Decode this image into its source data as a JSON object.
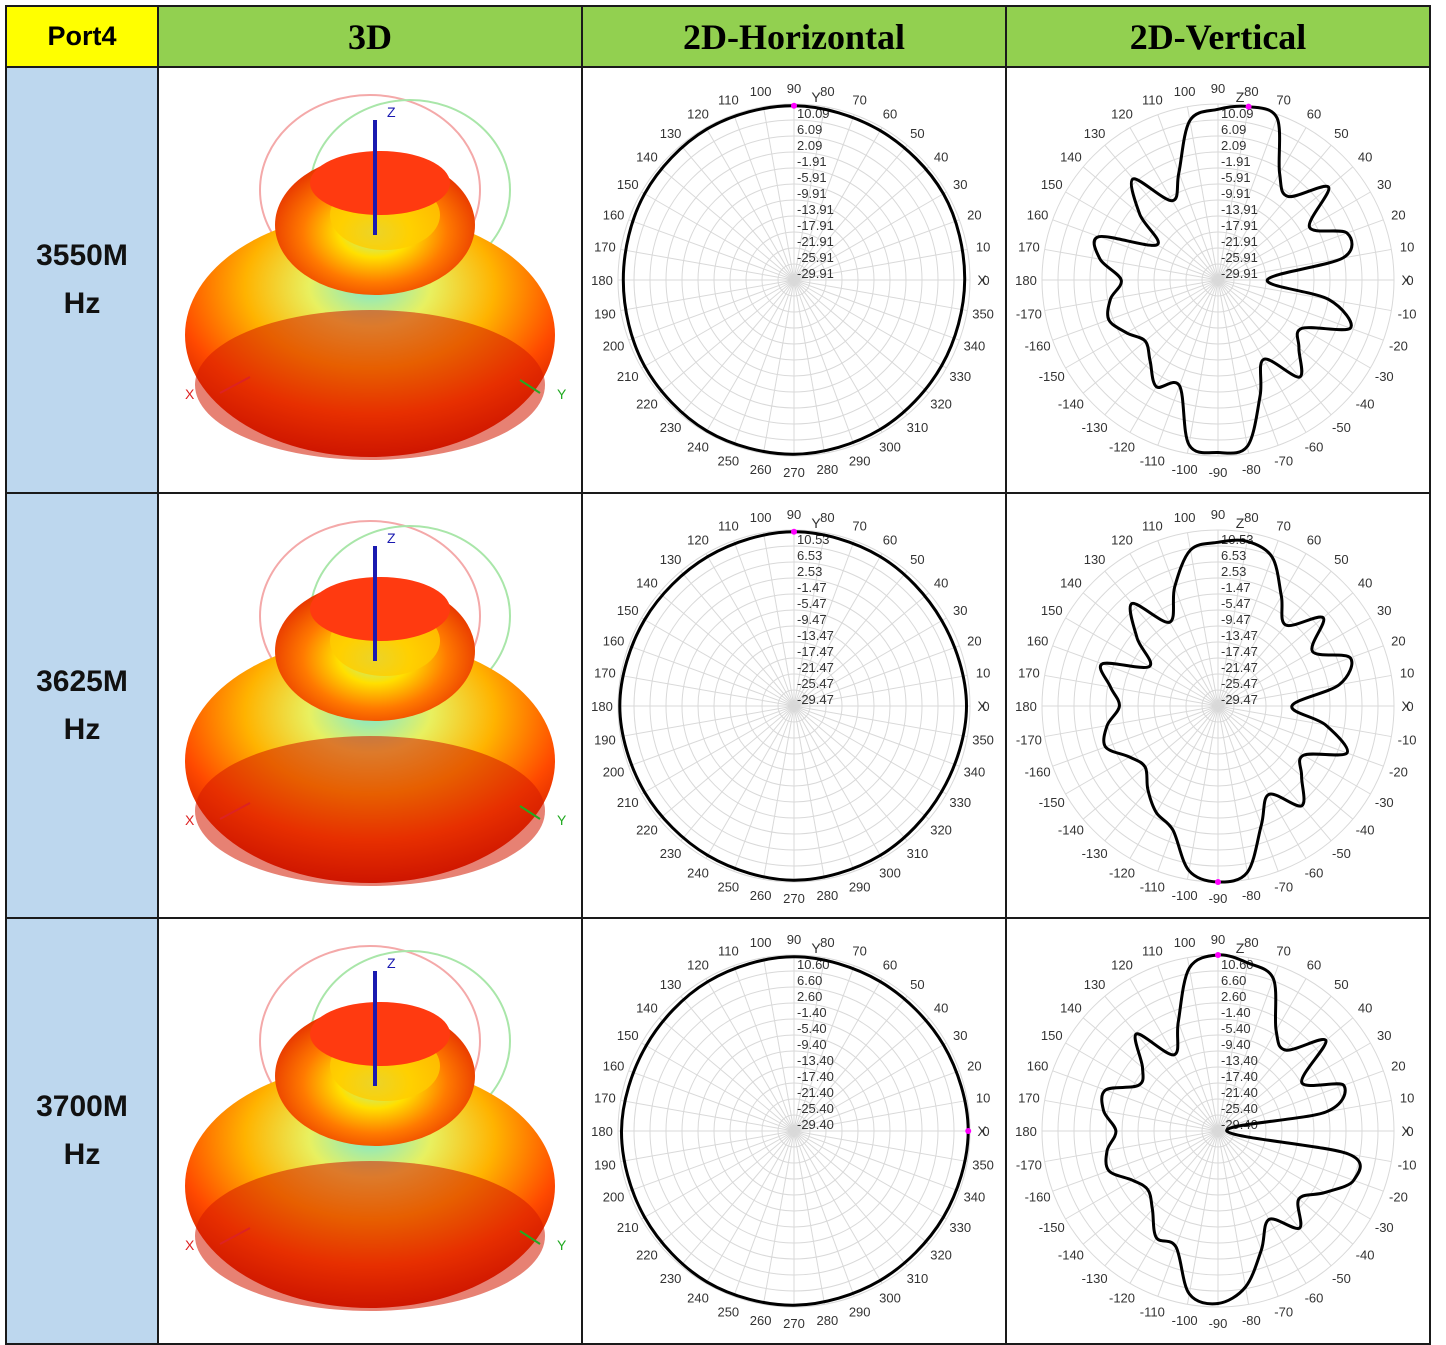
{
  "header": {
    "port": "Port4",
    "col_3d": "3D",
    "col_h": "2D-Horizontal",
    "col_v": "2D-Vertical"
  },
  "rows": [
    {
      "freq_line1": "3550M",
      "freq_line2": "Hz"
    },
    {
      "freq_line1": "3625M",
      "freq_line2": "Hz"
    },
    {
      "freq_line1": "3700M",
      "freq_line2": "Hz"
    }
  ],
  "axis_labels_3d": {
    "x": "X",
    "y": "Y",
    "z": "Z"
  },
  "colors": {
    "port_header": "#ffff00",
    "col_header": "#92d050",
    "freq_cell": "#bdd7ee",
    "trace": "#000000",
    "marker": "#ff00ff",
    "grid": "#d9d9d9"
  },
  "chart_data": [
    {
      "type": "polar",
      "name": "2D-Horizontal 3550MHz",
      "axis_tag": "Y",
      "axis_tag_2": "X",
      "rings": [
        "10.09",
        "6.09",
        "2.09",
        "-1.91",
        "-5.91",
        "-9.91",
        "-13.91",
        "-17.91",
        "-21.91",
        "-25.91",
        "-29.91"
      ],
      "angle_labels": [
        "0",
        "10",
        "20",
        "30",
        "40",
        "50",
        "60",
        "70",
        "80",
        "90",
        "100",
        "110",
        "120",
        "130",
        "140",
        "150",
        "160",
        "170",
        "180",
        "190",
        "200",
        "210",
        "220",
        "230",
        "240",
        "250",
        "260",
        "270",
        "280",
        "290",
        "300",
        "310",
        "320",
        "330",
        "340",
        "350"
      ],
      "angles_deg": [
        0,
        30,
        60,
        90,
        120,
        150,
        180,
        210,
        240,
        270,
        300,
        330
      ],
      "radius_fraction": [
        0.97,
        0.98,
        0.98,
        0.99,
        0.99,
        0.98,
        0.97,
        0.98,
        0.99,
        0.99,
        0.98,
        0.97
      ]
    },
    {
      "type": "polar",
      "name": "2D-Vertical 3550MHz",
      "axis_tag": "Z",
      "axis_tag_2": "X",
      "rings": [
        "10.09",
        "6.09",
        "2.09",
        "-1.91",
        "-5.91",
        "-9.91",
        "-13.91",
        "-17.91",
        "-21.91",
        "-25.91",
        "-29.91"
      ],
      "angle_labels": [
        "0",
        "10",
        "20",
        "30",
        "40",
        "50",
        "60",
        "70",
        "80",
        "90",
        "100",
        "110",
        "120",
        "130",
        "140",
        "150",
        "160",
        "170",
        "180",
        "-170",
        "-160",
        "-150",
        "-140",
        "-130",
        "-120",
        "-110",
        "-100",
        "-90",
        "-80",
        "-70",
        "-60",
        "-50",
        "-40",
        "-30",
        "-20",
        "-10"
      ],
      "angles_deg": [
        0,
        10,
        20,
        30,
        40,
        50,
        60,
        70,
        80,
        90,
        100,
        110,
        120,
        130,
        140,
        150,
        160,
        170,
        180,
        190,
        200,
        210,
        220,
        230,
        240,
        250,
        260,
        270,
        280,
        290,
        300,
        310,
        320,
        330,
        340,
        350
      ],
      "radius_fraction": [
        0.28,
        0.72,
        0.78,
        0.6,
        0.82,
        0.62,
        0.7,
        0.98,
        1.0,
        0.97,
        0.92,
        0.65,
        0.52,
        0.75,
        0.58,
        0.4,
        0.72,
        0.68,
        0.55,
        0.62,
        0.66,
        0.6,
        0.54,
        0.6,
        0.7,
        0.64,
        0.95,
        0.98,
        0.96,
        0.7,
        0.52,
        0.72,
        0.6,
        0.55,
        0.8,
        0.64
      ]
    },
    {
      "type": "polar",
      "name": "2D-Horizontal 3625MHz",
      "axis_tag": "Y",
      "axis_tag_2": "X",
      "rings": [
        "10.53",
        "6.53",
        "2.53",
        "-1.47",
        "-5.47",
        "-9.47",
        "-13.47",
        "-17.47",
        "-21.47",
        "-25.47",
        "-29.47"
      ],
      "angle_labels": [
        "0",
        "10",
        "20",
        "30",
        "40",
        "50",
        "60",
        "70",
        "80",
        "90",
        "100",
        "110",
        "120",
        "130",
        "140",
        "150",
        "160",
        "170",
        "180",
        "190",
        "200",
        "210",
        "220",
        "230",
        "240",
        "250",
        "260",
        "270",
        "280",
        "290",
        "300",
        "310",
        "320",
        "330",
        "340",
        "350"
      ],
      "angles_deg": [
        0,
        30,
        60,
        90,
        120,
        150,
        180,
        210,
        240,
        270,
        300,
        330
      ],
      "radius_fraction": [
        0.98,
        0.97,
        0.98,
        0.99,
        0.98,
        0.98,
        0.99,
        0.98,
        0.98,
        0.99,
        0.98,
        0.97
      ]
    },
    {
      "type": "polar",
      "name": "2D-Vertical 3625MHz",
      "axis_tag": "Z",
      "axis_tag_2": "X",
      "rings": [
        "10.53",
        "6.53",
        "2.53",
        "-1.47",
        "-5.47",
        "-9.47",
        "-13.47",
        "-17.47",
        "-21.47",
        "-25.47",
        "-29.47"
      ],
      "angle_labels": [
        "0",
        "10",
        "20",
        "30",
        "40",
        "50",
        "60",
        "70",
        "80",
        "90",
        "100",
        "110",
        "120",
        "130",
        "140",
        "150",
        "160",
        "170",
        "180",
        "-170",
        "-160",
        "-150",
        "-140",
        "-130",
        "-120",
        "-110",
        "-100",
        "-90",
        "-80",
        "-70",
        "-60",
        "-50",
        "-40",
        "-30",
        "-20",
        "-10"
      ],
      "angles_deg": [
        0,
        10,
        20,
        30,
        40,
        50,
        60,
        70,
        80,
        90,
        100,
        110,
        120,
        130,
        140,
        150,
        160,
        170,
        180,
        190,
        200,
        210,
        220,
        230,
        240,
        250,
        260,
        270,
        280,
        290,
        300,
        310,
        320,
        330,
        340,
        350
      ],
      "radius_fraction": [
        0.42,
        0.7,
        0.8,
        0.62,
        0.78,
        0.6,
        0.72,
        0.9,
        0.95,
        0.93,
        0.9,
        0.72,
        0.55,
        0.76,
        0.6,
        0.45,
        0.7,
        0.62,
        0.56,
        0.64,
        0.68,
        0.58,
        0.54,
        0.62,
        0.7,
        0.75,
        0.95,
        1.0,
        0.96,
        0.72,
        0.58,
        0.74,
        0.62,
        0.56,
        0.78,
        0.62
      ]
    },
    {
      "type": "polar",
      "name": "2D-Horizontal 3700MHz",
      "axis_tag": "Y",
      "axis_tag_2": "X",
      "rings": [
        "10.60",
        "6.60",
        "2.60",
        "-1.40",
        "-5.40",
        "-9.40",
        "-13.40",
        "-17.40",
        "-21.40",
        "-25.40",
        "-29.40"
      ],
      "angle_labels": [
        "0",
        "10",
        "20",
        "30",
        "40",
        "50",
        "60",
        "70",
        "80",
        "90",
        "100",
        "110",
        "120",
        "130",
        "140",
        "150",
        "160",
        "170",
        "180",
        "190",
        "200",
        "210",
        "220",
        "230",
        "240",
        "250",
        "260",
        "270",
        "280",
        "290",
        "300",
        "310",
        "320",
        "330",
        "340",
        "350"
      ],
      "angles_deg": [
        0,
        30,
        60,
        90,
        120,
        150,
        180,
        210,
        240,
        270,
        300,
        330
      ],
      "radius_fraction": [
        0.99,
        0.98,
        0.98,
        0.99,
        0.98,
        0.97,
        0.98,
        0.98,
        0.99,
        0.99,
        0.98,
        0.98
      ]
    },
    {
      "type": "polar",
      "name": "2D-Vertical 3700MHz",
      "axis_tag": "Z",
      "axis_tag_2": "X",
      "rings": [
        "10.60",
        "6.60",
        "2.60",
        "-1.40",
        "-5.40",
        "-9.40",
        "-13.40",
        "-17.40",
        "-21.40",
        "-25.40",
        "-29.40"
      ],
      "angle_labels": [
        "0",
        "10",
        "20",
        "30",
        "40",
        "50",
        "60",
        "70",
        "80",
        "90",
        "100",
        "110",
        "120",
        "130",
        "140",
        "150",
        "160",
        "170",
        "180",
        "-170",
        "-160",
        "-150",
        "-140",
        "-130",
        "-120",
        "-110",
        "-100",
        "-90",
        "-80",
        "-70",
        "-60",
        "-50",
        "-40",
        "-30",
        "-20",
        "-10"
      ],
      "angles_deg": [
        0,
        10,
        20,
        30,
        40,
        50,
        60,
        70,
        80,
        90,
        100,
        110,
        120,
        130,
        140,
        150,
        160,
        170,
        180,
        190,
        200,
        210,
        220,
        230,
        240,
        250,
        260,
        270,
        280,
        290,
        300,
        310,
        320,
        330,
        340,
        350
      ],
      "radius_fraction": [
        0.05,
        0.62,
        0.76,
        0.55,
        0.8,
        0.6,
        0.66,
        0.92,
        0.97,
        1.0,
        0.94,
        0.66,
        0.5,
        0.72,
        0.56,
        0.52,
        0.68,
        0.66,
        0.58,
        0.64,
        0.66,
        0.56,
        0.52,
        0.58,
        0.7,
        0.7,
        0.94,
        0.98,
        0.9,
        0.72,
        0.58,
        0.72,
        0.6,
        0.7,
        0.82,
        0.75
      ]
    }
  ]
}
